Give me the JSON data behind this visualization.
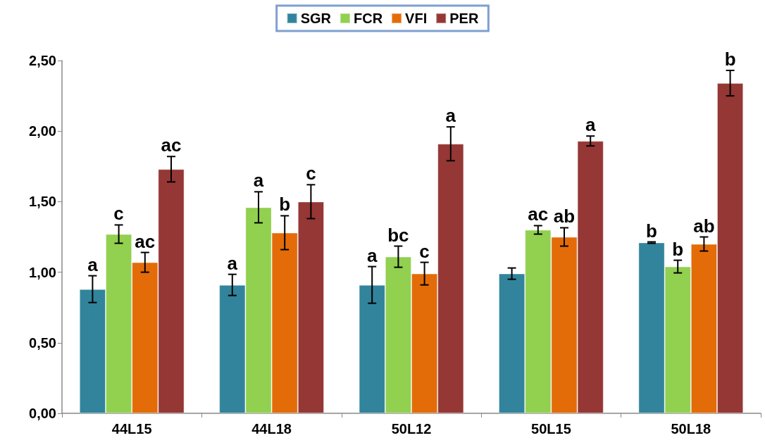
{
  "chart_data": {
    "type": "bar",
    "categories": [
      "44L15",
      "44L18",
      "50L12",
      "50L15",
      "50L18"
    ],
    "series": [
      {
        "name": "SGR",
        "color": "#31849b",
        "values": [
          0.88,
          0.91,
          0.91,
          0.99,
          1.21
        ],
        "errors": [
          0.095,
          0.075,
          0.13,
          0.04,
          0.005
        ],
        "value_labels": [
          "a",
          "a",
          "a",
          null,
          "b"
        ]
      },
      {
        "name": "FCR",
        "color": "#92d050",
        "values": [
          1.27,
          1.46,
          1.11,
          1.3,
          1.04
        ],
        "errors": [
          0.065,
          0.11,
          0.075,
          0.03,
          0.045
        ],
        "value_labels": [
          "c",
          "a",
          "bc",
          "ac",
          "b"
        ]
      },
      {
        "name": "VFI",
        "color": "#e36c09",
        "values": [
          1.07,
          1.28,
          0.99,
          1.25,
          1.2
        ],
        "errors": [
          0.07,
          0.12,
          0.08,
          0.065,
          0.05
        ],
        "value_labels": [
          "ac",
          "b",
          "c",
          "ab",
          "ab"
        ]
      },
      {
        "name": "PER",
        "color": "#953735",
        "values": [
          1.73,
          1.5,
          1.91,
          1.93,
          2.34
        ],
        "errors": [
          0.09,
          0.12,
          0.12,
          0.035,
          0.09
        ],
        "value_labels": [
          "ac",
          "c",
          "a",
          "a",
          "b"
        ]
      }
    ],
    "ylim": [
      0,
      2.5
    ],
    "yticks": [
      {
        "value": 0,
        "label": "0,00"
      },
      {
        "value": 0.5,
        "label": "0,50"
      },
      {
        "value": 1,
        "label": "1,00"
      },
      {
        "value": 1.5,
        "label": "1,50"
      },
      {
        "value": 2,
        "label": "2,00"
      },
      {
        "value": 2.5,
        "label": "2,50"
      }
    ],
    "grid": false,
    "legend": "top"
  }
}
